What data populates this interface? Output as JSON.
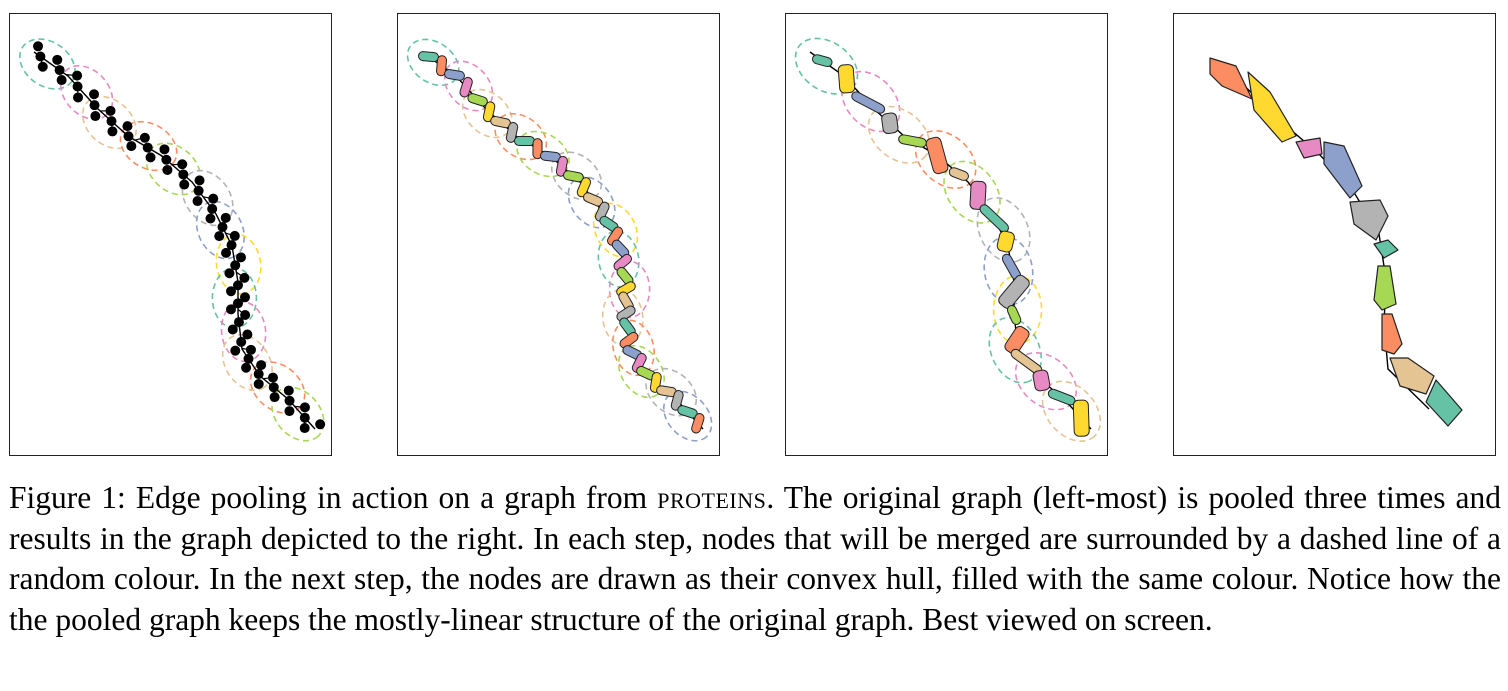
{
  "figure": {
    "panels": [
      {
        "id": "original-graph",
        "stage": 0
      },
      {
        "id": "pooled-once",
        "stage": 1
      },
      {
        "id": "pooled-twice",
        "stage": 2
      },
      {
        "id": "pooled-thrice",
        "stage": 3
      }
    ],
    "palette": {
      "teal": "#66c2a5",
      "orange": "#fc8d62",
      "blue": "#8da0cb",
      "pink": "#e78ac3",
      "green": "#a6d854",
      "yellow": "#ffd92f",
      "tan": "#e5c494",
      "gray": "#b3b3b3",
      "node": "#000000",
      "edge": "#000000"
    }
  },
  "caption": {
    "part1": "Figure 1: Edge pooling in action on a graph from ",
    "dataset": "proteins",
    "part2": ". The original graph (left-most) is pooled three times and results in the graph depicted to the right. In each step, nodes that will be merged are surrounded by a dashed line of a random colour. In the next step, the nodes are drawn as their convex hull, filled with the same colour. Notice how the the pooled graph keeps the mostly-linear structure of the original graph. Best viewed on screen."
  }
}
